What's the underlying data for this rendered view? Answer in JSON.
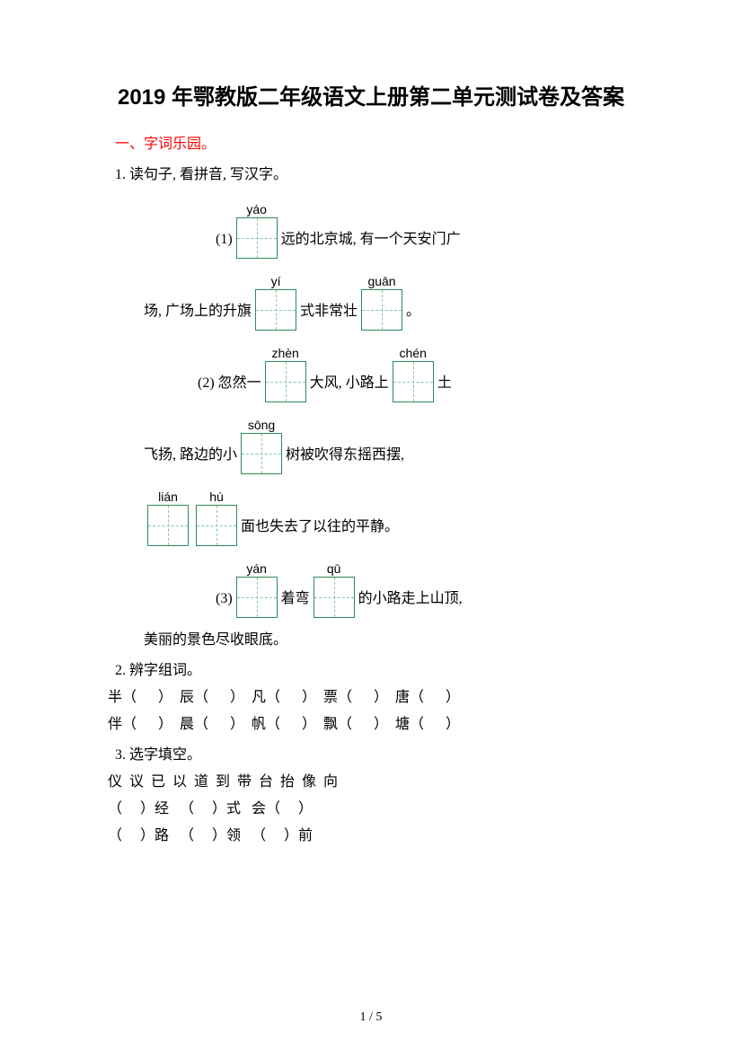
{
  "title": "2019 年鄂教版二年级语文上册第二单元测试卷及答案",
  "section1": {
    "heading": "一、字词乐园。",
    "q1": {
      "label": "1. 读句子, 看拼音, 写汉字。",
      "items": [
        {
          "parts": [
            {
              "type": "text",
              "value": "(1)"
            },
            {
              "type": "box",
              "pinyin": "yáo"
            },
            {
              "type": "text",
              "value": "远的北京城, 有一个天安门广"
            }
          ]
        },
        {
          "parts": [
            {
              "type": "text",
              "value": "场, 广场上的升旗"
            },
            {
              "type": "box",
              "pinyin": "yí"
            },
            {
              "type": "text",
              "value": "式非常壮"
            },
            {
              "type": "box",
              "pinyin": "guān"
            },
            {
              "type": "text",
              "value": "。"
            }
          ]
        },
        {
          "parts": [
            {
              "type": "text",
              "value": "(2) 忽然一"
            },
            {
              "type": "box",
              "pinyin": "zhèn"
            },
            {
              "type": "text",
              "value": "大风, 小路上"
            },
            {
              "type": "box",
              "pinyin": "chén"
            },
            {
              "type": "text",
              "value": "土"
            }
          ]
        },
        {
          "parts": [
            {
              "type": "text",
              "value": "飞扬, 路边的小"
            },
            {
              "type": "box",
              "pinyin": "sōng"
            },
            {
              "type": "text",
              "value": "树被吹得东摇西摆,"
            }
          ]
        },
        {
          "parts": [
            {
              "type": "box",
              "pinyin": "lián"
            },
            {
              "type": "box",
              "pinyin": "hú"
            },
            {
              "type": "text",
              "value": "面也失去了以往的平静。"
            }
          ]
        },
        {
          "parts": [
            {
              "type": "text",
              "value": "(3)"
            },
            {
              "type": "box",
              "pinyin": "yán"
            },
            {
              "type": "text",
              "value": "着弯"
            },
            {
              "type": "box",
              "pinyin": "qū"
            },
            {
              "type": "text",
              "value": "的小路走上山顶,"
            }
          ]
        },
        {
          "parts": [
            {
              "type": "text",
              "value": "美丽的景色尽收眼底。"
            }
          ],
          "plain": true
        }
      ]
    },
    "q2": {
      "label": "2. 辨字组词。",
      "rows": [
        "半（      ）  辰（      ）  凡（      ）  票（      ）  唐（      ）",
        "伴（      ）  晨（      ）  帆（      ）  飘（      ）  塘（      ）"
      ]
    },
    "q3": {
      "label": "3. 选字填空。",
      "chars": "仪  议  已  以  道  到  带  台  抬  像  向",
      "rows": [
        "（     ）经   （     ）式   会（     ）",
        "（     ）路   （     ）领   （     ）前"
      ]
    }
  },
  "pageNumber": "1 / 5",
  "colors": {
    "heading": "#ff0000",
    "boxBorder": "#2e8b57",
    "boxDash": "#7fc9a0",
    "text": "#000000",
    "background": "#ffffff"
  },
  "layout": {
    "pageWidth": 826,
    "pageHeight": 1169,
    "titleFontSize": 24,
    "bodyFontSize": 16,
    "pinyinFontSize": 14,
    "boxSize": 46
  }
}
